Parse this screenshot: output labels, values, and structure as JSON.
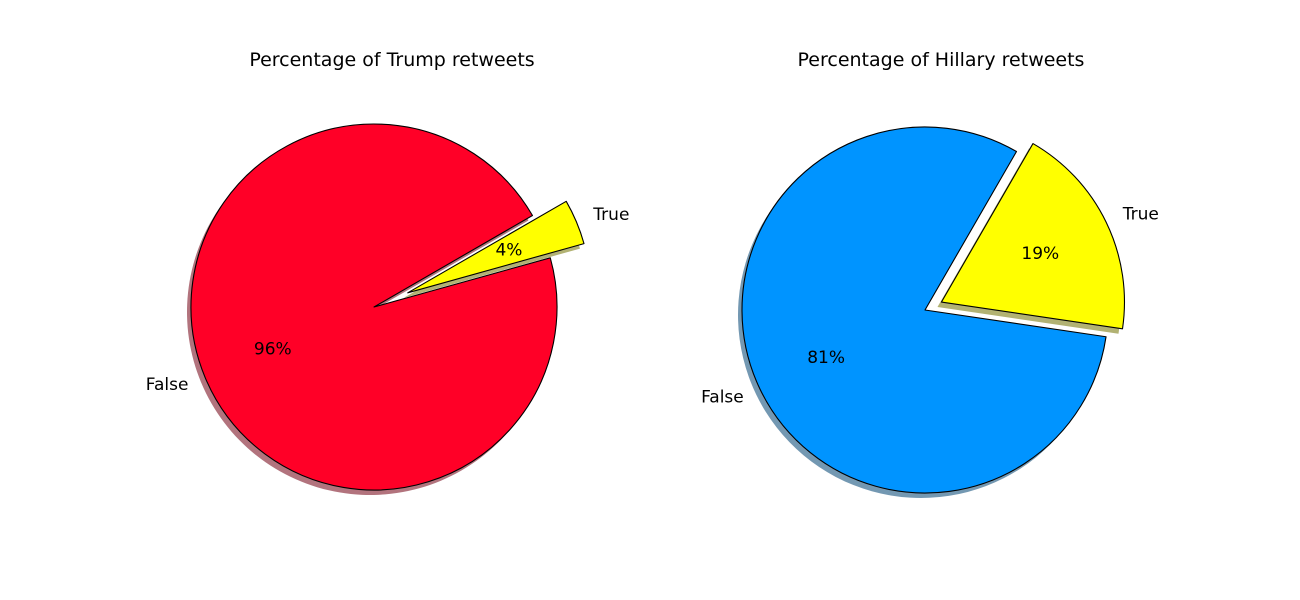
{
  "chart_data": [
    {
      "type": "pie",
      "title": "Percentage of Trump retweets",
      "categories": [
        "False",
        "True"
      ],
      "values": [
        96,
        4
      ],
      "percent_labels": [
        "96%",
        "4%"
      ],
      "colors": [
        "#ff0027",
        "#ffff00"
      ],
      "explode": [
        0,
        0.2
      ],
      "shadow": true,
      "edgecolor": "#000000"
    },
    {
      "type": "pie",
      "title": "Percentage of Hillary retweets",
      "categories": [
        "False",
        "True"
      ],
      "values": [
        81,
        19
      ],
      "percent_labels": [
        "81%",
        "19%"
      ],
      "colors": [
        "#0094ff",
        "#ffff00"
      ],
      "explode": [
        0,
        0.1
      ],
      "shadow": true,
      "edgecolor": "#000000"
    }
  ]
}
